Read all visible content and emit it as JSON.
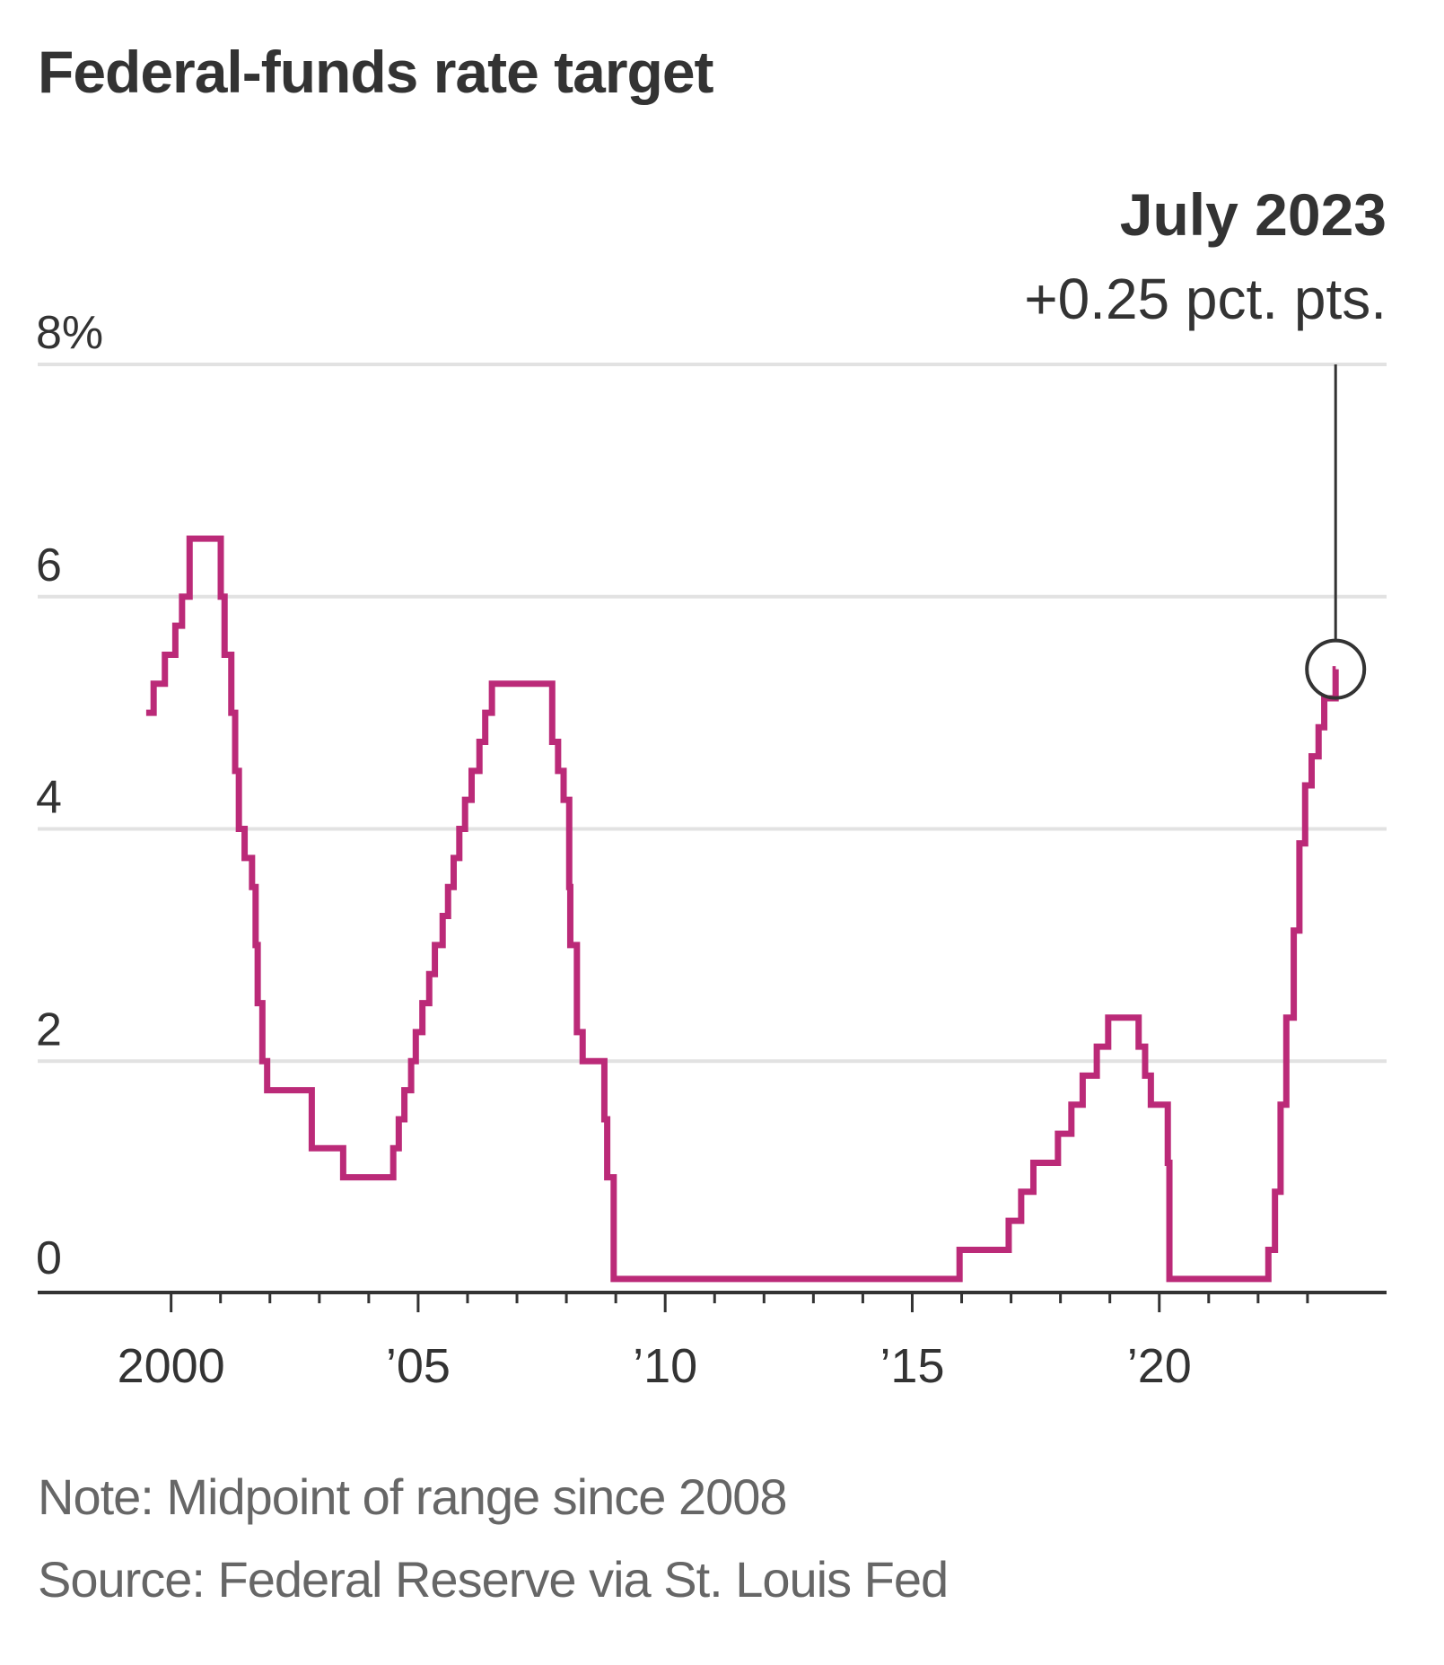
{
  "chart_data": {
    "type": "line",
    "step": true,
    "title": "Federal-funds rate target",
    "xlabel": "",
    "ylabel": "",
    "ylim": [
      0,
      8
    ],
    "xlim": [
      1997.3,
      2024.6
    ],
    "y_ticks": [
      {
        "value": 8,
        "label": "8%"
      },
      {
        "value": 6,
        "label": "6"
      },
      {
        "value": 4,
        "label": "4"
      },
      {
        "value": 2,
        "label": "2"
      },
      {
        "value": 0,
        "label": "0"
      }
    ],
    "x_ticks": [
      {
        "value": 2000,
        "label": "2000"
      },
      {
        "value": 2005,
        "label": "’05"
      },
      {
        "value": 2010,
        "label": "’10"
      },
      {
        "value": 2015,
        "label": "’15"
      },
      {
        "value": 2020,
        "label": "’20"
      }
    ],
    "grid": true,
    "color": "#bb2a78",
    "series": [
      {
        "name": "Federal-funds rate target",
        "dates": [
          "1999-06-30",
          "1999-08-24",
          "1999-11-16",
          "2000-02-02",
          "2000-03-21",
          "2000-05-16",
          "2001-01-03",
          "2001-01-31",
          "2001-03-20",
          "2001-04-18",
          "2001-05-15",
          "2001-06-27",
          "2001-08-21",
          "2001-09-17",
          "2001-10-02",
          "2001-11-06",
          "2001-12-11",
          "2002-11-06",
          "2003-06-25",
          "2004-06-30",
          "2004-08-10",
          "2004-09-21",
          "2004-11-10",
          "2004-12-14",
          "2005-02-02",
          "2005-03-22",
          "2005-05-03",
          "2005-06-30",
          "2005-08-09",
          "2005-09-20",
          "2005-11-01",
          "2005-12-13",
          "2006-01-31",
          "2006-03-28",
          "2006-05-10",
          "2006-06-29",
          "2007-09-18",
          "2007-10-31",
          "2007-12-11",
          "2008-01-22",
          "2008-01-30",
          "2008-03-18",
          "2008-04-30",
          "2008-10-08",
          "2008-10-29",
          "2008-12-16",
          "2015-12-16",
          "2016-12-14",
          "2017-03-15",
          "2017-06-14",
          "2017-12-13",
          "2018-03-21",
          "2018-06-13",
          "2018-09-26",
          "2018-12-19",
          "2019-07-31",
          "2019-09-18",
          "2019-10-30",
          "2020-03-03",
          "2020-03-15",
          "2022-03-16",
          "2022-05-04",
          "2022-06-15",
          "2022-07-27",
          "2022-09-21",
          "2022-11-02",
          "2022-12-14",
          "2023-02-01",
          "2023-03-22",
          "2023-05-03",
          "2023-07-26",
          "2023-07-27"
        ],
        "values": [
          5.0,
          5.25,
          5.5,
          5.75,
          6.0,
          6.5,
          6.0,
          5.5,
          5.0,
          4.5,
          4.0,
          3.75,
          3.5,
          3.0,
          2.5,
          2.0,
          1.75,
          1.25,
          1.0,
          1.25,
          1.5,
          1.75,
          2.0,
          2.25,
          2.5,
          2.75,
          3.0,
          3.25,
          3.5,
          3.75,
          4.0,
          4.25,
          4.5,
          4.75,
          5.0,
          5.25,
          4.75,
          4.5,
          4.25,
          3.5,
          3.0,
          2.25,
          2.0,
          1.5,
          1.0,
          0.125,
          0.375,
          0.625,
          0.875,
          1.125,
          1.375,
          1.625,
          1.875,
          2.125,
          2.375,
          2.125,
          1.875,
          1.625,
          1.125,
          0.125,
          0.375,
          0.875,
          1.625,
          2.375,
          3.125,
          3.875,
          4.375,
          4.625,
          4.875,
          5.125,
          5.375,
          5.375
        ]
      }
    ],
    "annotation": {
      "date": "2023-07-26",
      "value": 5.375,
      "title": "July 2023",
      "text": "+0.25 pct. pts."
    },
    "notes": [
      "Note: Midpoint of range since 2008",
      "Source: Federal Reserve via St. Louis Fed"
    ]
  }
}
